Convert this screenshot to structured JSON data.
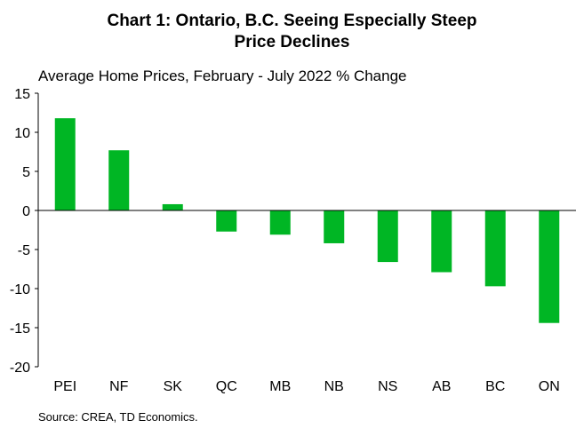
{
  "chart_data": {
    "type": "bar",
    "title": "Chart 1: Ontario, B.C. Seeing Especially Steep Price Declines",
    "title_lines": [
      "Chart 1: Ontario, B.C. Seeing Especially Steep",
      "Price Declines"
    ],
    "subtitle": "Average Home Prices, February - July 2022 % Change",
    "source": "Source: CREA, TD Economics.",
    "categories": [
      "PEI",
      "NF",
      "SK",
      "QC",
      "MB",
      "NB",
      "NS",
      "AB",
      "BC",
      "ON"
    ],
    "values": [
      11.8,
      7.7,
      0.8,
      -2.7,
      -3.1,
      -4.2,
      -6.6,
      -7.9,
      -9.7,
      -14.4
    ],
    "ylim": [
      -20,
      15
    ],
    "yticks": [
      15,
      10,
      5,
      0,
      -5,
      -10,
      -15,
      -20
    ],
    "ytick_labels": [
      "15",
      "10",
      "5",
      "0",
      "-5",
      "-10",
      "-15",
      "-20"
    ],
    "xlabel": "",
    "ylabel": "",
    "grid": false,
    "legend": "none",
    "bar_color": "#00B624"
  }
}
